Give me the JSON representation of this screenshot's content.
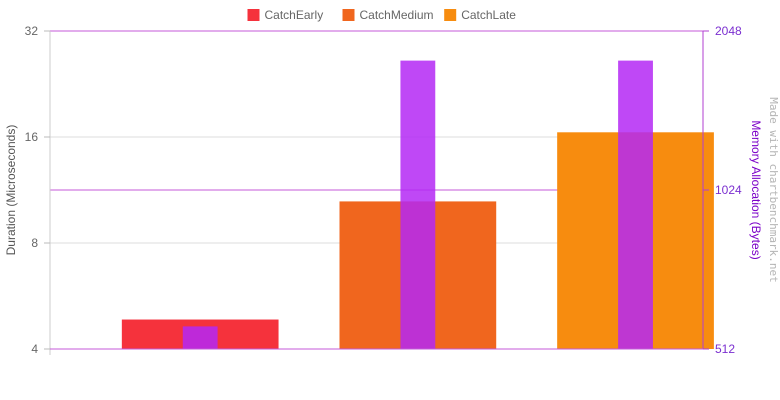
{
  "chart_data": {
    "type": "bar",
    "categories": [
      "CatchEarly",
      "CatchMedium",
      "CatchLate"
    ],
    "series": [
      {
        "name": "CatchEarly",
        "axis": "left",
        "color": "#f5323c",
        "values": [
          4.85,
          null,
          null
        ]
      },
      {
        "name": "CatchMedium",
        "axis": "left",
        "color": "#f0661e",
        "values": [
          null,
          10.5,
          null
        ]
      },
      {
        "name": "CatchLate",
        "axis": "left",
        "color": "#f78c0f",
        "values": [
          null,
          null,
          16.5
        ]
      },
      {
        "name": "",
        "axis": "right",
        "color": "#b428f5",
        "values": [
          565,
          1800,
          1800
        ]
      }
    ],
    "ylabel": "Duration (Microseconds)",
    "y2label": "Memory Allocation (Bytes)",
    "ylim": [
      4,
      32
    ],
    "y2lim": [
      512,
      2048
    ],
    "yscale": "log2",
    "y2scale": "log2",
    "yticks": [
      "4",
      "8",
      "16",
      "32"
    ],
    "y2ticks": [
      "512",
      "1024",
      "2048"
    ],
    "legend_position": "top",
    "grid": true,
    "watermark": "Made with chartbenchmark.net"
  }
}
